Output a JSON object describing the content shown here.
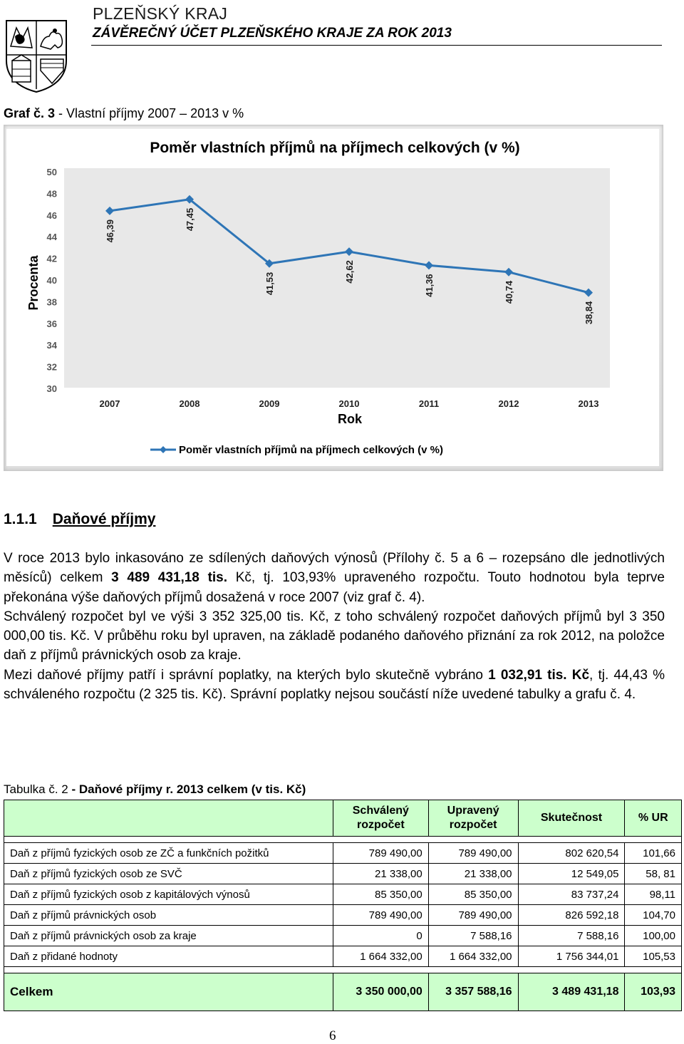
{
  "header": {
    "region": "PLZEŇSKÝ KRAJ",
    "title": "ZÁVĚREČNÝ ÚČET PLZEŇSKÉHO KRAJE ZA ROK 2013"
  },
  "chart_caption": {
    "label": "Graf č. 3",
    "text": " - Vlastní příjmy 2007 – 2013 v %"
  },
  "chart_data": {
    "type": "line",
    "title": "Poměr vlastních příjmů na příjmech celkových (v %)",
    "xlabel": "Rok",
    "ylabel": "Procenta",
    "categories": [
      "2007",
      "2008",
      "2009",
      "2010",
      "2011",
      "2012",
      "2013"
    ],
    "y_ticks": [
      "30",
      "32",
      "34",
      "36",
      "38",
      "40",
      "42",
      "44",
      "46",
      "48",
      "50"
    ],
    "ylim": [
      30,
      50
    ],
    "grid": false,
    "legend_position": "bottom",
    "series": [
      {
        "name": "Poměr vlastních příjmů na příjmech celkových (v %)",
        "values": [
          46.39,
          47.45,
          41.53,
          42.62,
          41.36,
          40.74,
          38.84
        ],
        "labels": [
          "46,39",
          "47,45",
          "41,53",
          "42,62",
          "41,36",
          "40,74",
          "38,84"
        ],
        "color": "#2e75b6"
      }
    ]
  },
  "section": {
    "number": "1.1.1",
    "title": "Daňové příjmy"
  },
  "paragraphs": {
    "p1": {
      "a": "V roce 2013 bylo inkasováno ze sdílených daňových výnosů (Přílohy č. 5 a 6 – rozepsáno dle jednotlivých měsíců) celkem ",
      "b": "3 489 431,18 tis.",
      "c": " Kč, tj. 103,93% upraveného rozpočtu. Touto hodnotou byla teprve překonána výše daňových příjmů dosažená v roce 2007 (viz graf č. 4)."
    },
    "p2": "Schválený rozpočet byl ve výši 3 352 325,00 tis. Kč, z toho schválený rozpočet daňových příjmů byl 3 350 000,00 tis. Kč. V průběhu roku byl upraven, na základě podaného daňového přiznání za rok 2012, na položce daň z příjmů právnických osob za kraje.",
    "p3": {
      "a": "Mezi daňové příjmy patří i správní poplatky, na kterých bylo skutečně vybráno ",
      "b": "1 032,91 tis. Kč",
      "c": ", tj. 44,43 % schváleného rozpočtu (2 325 tis. Kč). Správní poplatky nejsou součástí níže uvedené tabulky a grafu č. 4."
    }
  },
  "table_caption": {
    "label": "Tabulka č.  2",
    "text": " - Daňové příjmy r. 2013 celkem (v tis. Kč)"
  },
  "table": {
    "headers": [
      "",
      "Schválený rozpočet",
      "Upravený rozpočet",
      "Skutečnost",
      "% UR"
    ],
    "rows": [
      [
        "Daň z příjmů fyzických osob ze ZČ a funkčních požitků",
        "789 490,00",
        "789 490,00",
        "802 620,54",
        "101,66"
      ],
      [
        "Daň z příjmů fyzických osob ze SVČ",
        "21 338,00",
        "21 338,00",
        "12 549,05",
        "58, 81"
      ],
      [
        "Daň z příjmů fyzických osob z kapitálových výnosů",
        "85 350,00",
        "85 350,00",
        "83 737,24",
        "98,11"
      ],
      [
        "Daň z příjmů právnických osob",
        "789 490,00",
        "789 490,00",
        "826 592,18",
        "104,70"
      ],
      [
        "Daň z příjmů právnických osob za kraje",
        "0",
        "7 588,16",
        "7 588,16",
        "100,00"
      ],
      [
        "Daň z přidané hodnoty",
        "1 664 332,00",
        "1 664 332,00",
        "1 756 344,01",
        "105,53"
      ]
    ],
    "total": [
      "Celkem",
      "3 350 000,00",
      "3 357 588,16",
      "3 489 431,18",
      "103,93"
    ]
  },
  "page_number": "6",
  "colors": {
    "table_highlight": "#ccffcc",
    "chart_line": "#2e75b6"
  }
}
